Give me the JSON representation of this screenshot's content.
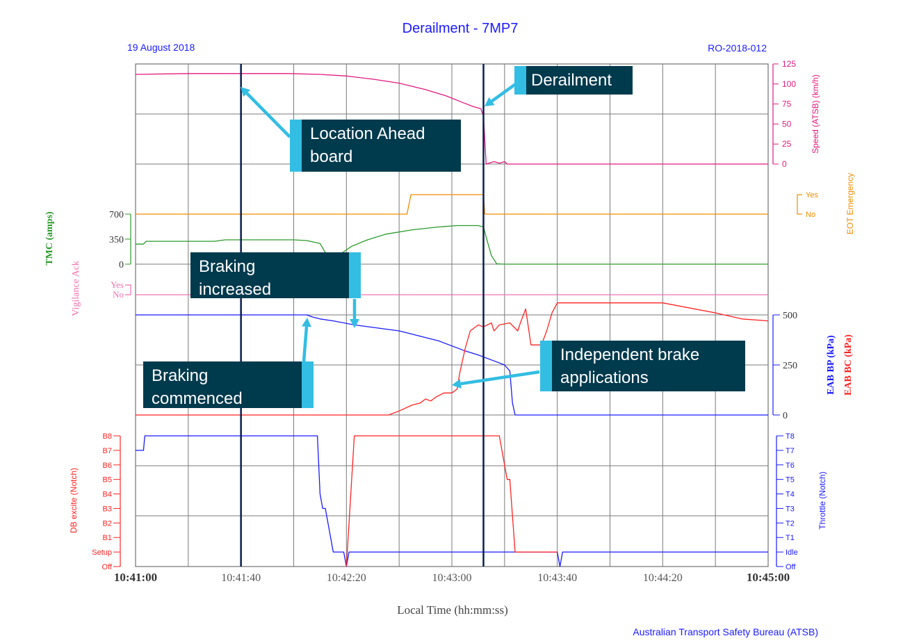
{
  "header": {
    "title": "Derailment - 7MP7",
    "date": "19 August 2018",
    "report_id": "RO-2018-012",
    "footer": "Australian Transport Safety Bureau (ATSB)"
  },
  "callouts": {
    "derailment": "Derailment",
    "location_board": "Location Ahead\nboard",
    "braking_increased": "Braking\nincreased",
    "braking_commenced": "Braking\ncommenced",
    "independent_brake": "Independent brake\napplications"
  },
  "colors": {
    "speed": "#e0197f",
    "eot": "#f08c00",
    "tmc": "#2a9a2a",
    "vigilance": "#f070b0",
    "bp": "#1a1aff",
    "bc": "#ff2222",
    "db": "#ff2222",
    "throttle": "#1a1aff",
    "grid": "#7a7a7a",
    "event_line": "#0a1e50",
    "callout_bg": "#003a4d",
    "callout_tab": "#33bde3",
    "arrow": "#33bde3"
  },
  "chart_data": {
    "type": "line",
    "x_axis": {
      "label": "Local Time (hh:mm:ss)",
      "ticks": [
        "10:41:00",
        "10:41:40",
        "10:42:20",
        "10:43:00",
        "10:43:40",
        "10:44:20",
        "10:45:00"
      ],
      "tick_seconds": [
        0,
        40,
        80,
        120,
        160,
        200,
        240
      ],
      "range_seconds": [
        0,
        240
      ],
      "start": "10:41:00"
    },
    "event_lines_seconds": [
      40,
      132
    ],
    "panels": [
      {
        "id": "speed",
        "axis_label": "Speed (ATSB) (km/h)",
        "ticks": [
          "125",
          "100",
          "75",
          "50",
          "25",
          "0"
        ],
        "range": [
          0,
          125
        ],
        "series": [
          {
            "name": "Speed (ATSB)",
            "color_key": "speed",
            "points": [
              [
                0,
                112
              ],
              [
                20,
                113
              ],
              [
                45,
                113
              ],
              [
                58,
                113
              ],
              [
                70,
                112
              ],
              [
                80,
                110
              ],
              [
                90,
                106
              ],
              [
                100,
                101
              ],
              [
                110,
                93
              ],
              [
                118,
                85
              ],
              [
                124,
                77
              ],
              [
                128,
                72
              ],
              [
                131,
                69
              ],
              [
                132,
                60
              ],
              [
                133,
                0
              ],
              [
                136,
                3
              ],
              [
                138,
                1
              ],
              [
                140,
                3
              ],
              [
                141,
                0
              ],
              [
                160,
                0
              ],
              [
                240,
                0
              ]
            ]
          }
        ]
      },
      {
        "id": "eot",
        "axis_label": "EOT Emergency",
        "ticks": [
          "Yes",
          "No"
        ],
        "series": [
          {
            "name": "EOT Emergency",
            "color_key": "eot",
            "points": [
              [
                0,
                "No"
              ],
              [
                103,
                "No"
              ],
              [
                104.5,
                "Yes"
              ],
              [
                132,
                "Yes"
              ],
              [
                132.5,
                "No"
              ],
              [
                240,
                "No"
              ]
            ]
          }
        ]
      },
      {
        "id": "tmc",
        "axis_label": "TMC (amps)",
        "ticks": [
          "700",
          "350",
          "0"
        ],
        "range": [
          0,
          700
        ],
        "series": [
          {
            "name": "TMC",
            "color_key": "tmc",
            "points": [
              [
                0,
                280
              ],
              [
                3,
                280
              ],
              [
                4,
                320
              ],
              [
                30,
                320
              ],
              [
                34,
                340
              ],
              [
                60,
                340
              ],
              [
                65,
                330
              ],
              [
                70,
                290
              ],
              [
                72,
                160
              ],
              [
                75,
                130
              ],
              [
                78,
                150
              ],
              [
                82,
                250
              ],
              [
                88,
                340
              ],
              [
                95,
                420
              ],
              [
                105,
                480
              ],
              [
                115,
                520
              ],
              [
                122,
                540
              ],
              [
                130,
                540
              ],
              [
                132,
                520
              ],
              [
                133,
                380
              ],
              [
                135,
                120
              ],
              [
                137,
                5
              ],
              [
                140,
                0
              ],
              [
                240,
                0
              ]
            ]
          }
        ]
      },
      {
        "id": "vigilance",
        "axis_label": "Vigilance Ack",
        "ticks": [
          "Yes",
          "No"
        ],
        "series": [
          {
            "name": "Vigilance Ack",
            "color_key": "vigilance",
            "points": [
              [
                0,
                "No"
              ],
              [
                240,
                "No"
              ]
            ]
          }
        ]
      },
      {
        "id": "brake",
        "axis_label_left": "EAB BP (kPa)",
        "axis_label_right": "EAB BC (kPa)",
        "ticks": [
          "500",
          "250",
          "0"
        ],
        "range": [
          0,
          500
        ],
        "series": [
          {
            "name": "EAB BP",
            "color_key": "bp",
            "points": [
              [
                0,
                500
              ],
              [
                65,
                500
              ],
              [
                67,
                490
              ],
              [
                70,
                480
              ],
              [
                75,
                470
              ],
              [
                83,
                450
              ],
              [
                100,
                420
              ],
              [
                115,
                370
              ],
              [
                125,
                320
              ],
              [
                130,
                300
              ],
              [
                136,
                270
              ],
              [
                140,
                250
              ],
              [
                142,
                220
              ],
              [
                143,
                60
              ],
              [
                144,
                0
              ],
              [
                240,
                0
              ]
            ]
          },
          {
            "name": "EAB BC",
            "color_key": "bc",
            "points": [
              [
                0,
                0
              ],
              [
                96,
                0
              ],
              [
                100,
                20
              ],
              [
                105,
                50
              ],
              [
                108,
                60
              ],
              [
                110,
                80
              ],
              [
                112,
                70
              ],
              [
                114,
                90
              ],
              [
                117,
                110
              ],
              [
                120,
                110
              ],
              [
                122,
                130
              ],
              [
                123,
                210
              ],
              [
                125,
                330
              ],
              [
                127,
                420
              ],
              [
                130,
                450
              ],
              [
                132,
                440
              ],
              [
                135,
                460
              ],
              [
                136,
                420
              ],
              [
                138,
                450
              ],
              [
                142,
                460
              ],
              [
                145,
                420
              ],
              [
                146,
                460
              ],
              [
                148,
                530
              ],
              [
                150,
                350
              ],
              [
                154,
                350
              ],
              [
                156,
                420
              ],
              [
                158,
                510
              ],
              [
                160,
                560
              ],
              [
                165,
                560
              ],
              [
                170,
                560
              ],
              [
                190,
                560
              ],
              [
                200,
                560
              ],
              [
                220,
                510
              ],
              [
                230,
                480
              ],
              [
                240,
                470
              ]
            ]
          }
        ]
      },
      {
        "id": "notch",
        "axis_label_left": "DB excite (Notch)",
        "axis_label_right": "Throttle (Notch)",
        "ticks_left": [
          "B8",
          "B7",
          "B6",
          "B5",
          "B4",
          "B3",
          "B2",
          "B1",
          "Setup",
          "Off"
        ],
        "ticks_right": [
          "T8",
          "T7",
          "T6",
          "T5",
          "T4",
          "T3",
          "T2",
          "T1",
          "Idle",
          "Off"
        ],
        "range": [
          0,
          9
        ],
        "series": [
          {
            "name": "Throttle",
            "color_key": "throttle",
            "points": [
              [
                0,
                8
              ],
              [
                3,
                8
              ],
              [
                3.5,
                9
              ],
              [
                69,
                9
              ],
              [
                70,
                5
              ],
              [
                71,
                4
              ],
              [
                72,
                4
              ],
              [
                74,
                2
              ],
              [
                75,
                1
              ],
              [
                79,
                1
              ],
              [
                80,
                0
              ],
              [
                81,
                1
              ],
              [
                160,
                1
              ],
              [
                161,
                0
              ],
              [
                162,
                1
              ],
              [
                240,
                1
              ]
            ]
          },
          {
            "name": "DB excite",
            "color_key": "db",
            "points": [
              [
                80,
                0
              ],
              [
                83,
                9
              ],
              [
                138,
                9
              ],
              [
                141,
                6
              ],
              [
                142,
                6
              ],
              [
                144,
                1
              ],
              [
                160,
                1
              ]
            ]
          }
        ]
      }
    ]
  }
}
